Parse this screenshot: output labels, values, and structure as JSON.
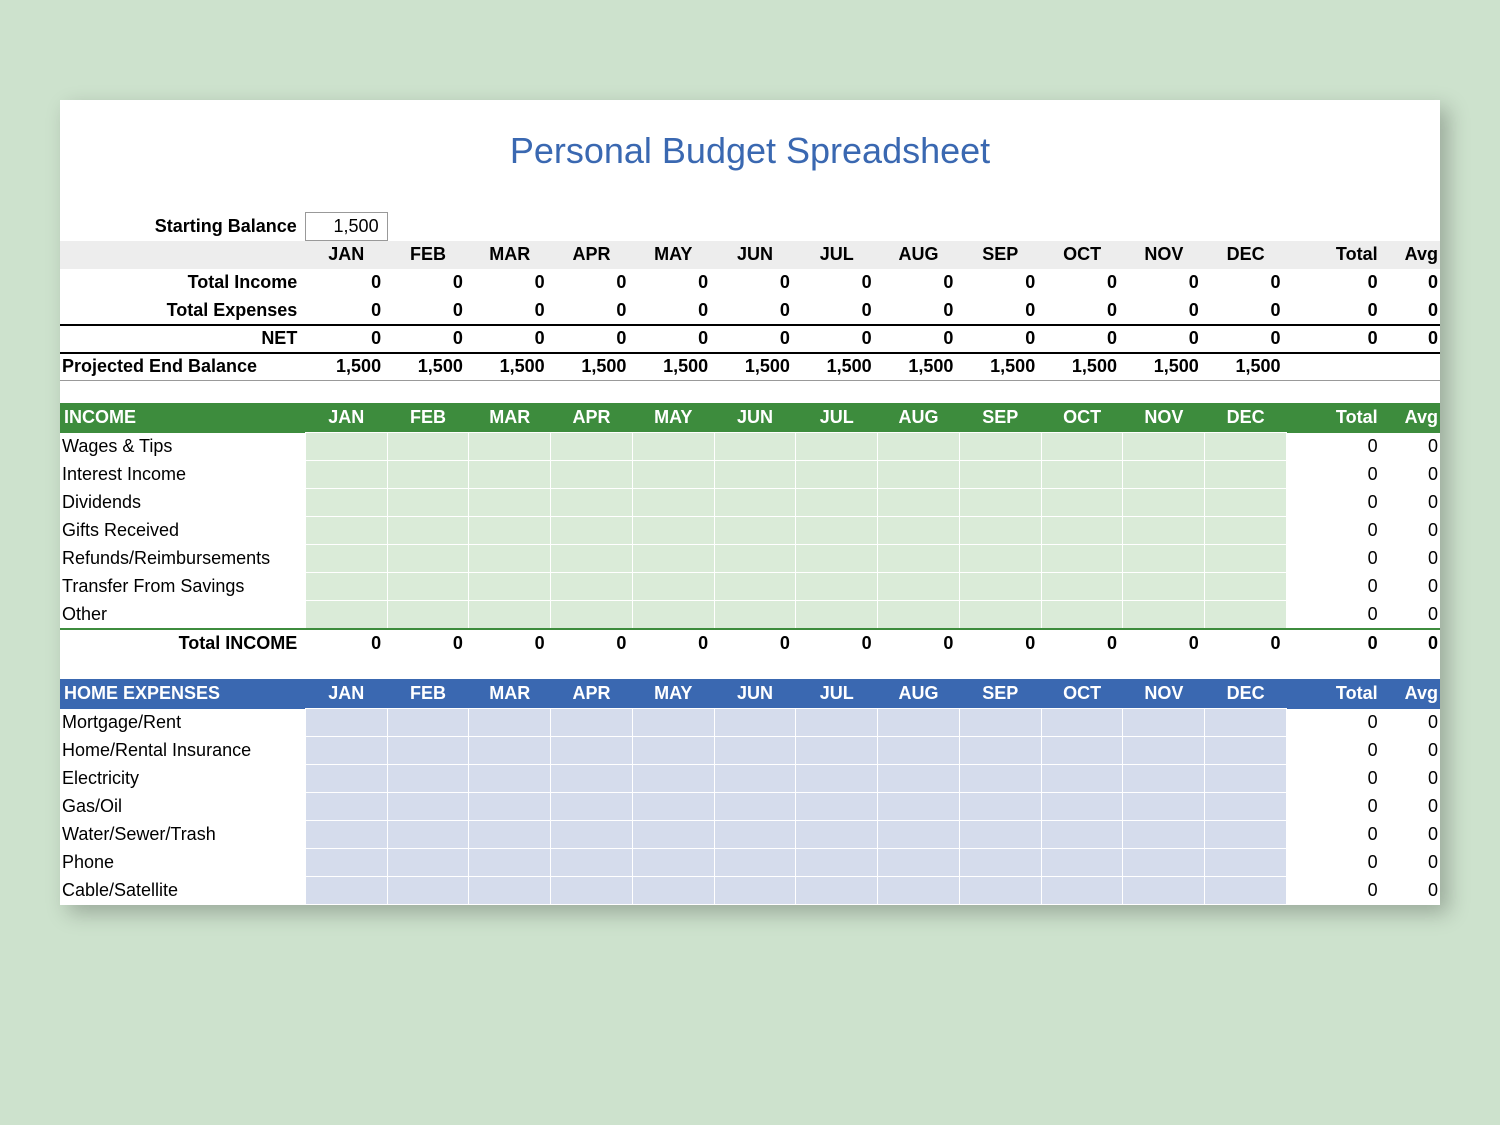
{
  "title": "Personal Budget Spreadsheet",
  "starting_balance_label": "Starting Balance",
  "starting_balance_value": "1,500",
  "months": [
    "JAN",
    "FEB",
    "MAR",
    "APR",
    "MAY",
    "JUN",
    "JUL",
    "AUG",
    "SEP",
    "OCT",
    "NOV",
    "DEC"
  ],
  "total_label": "Total",
  "avg_label": "Avg",
  "summary": {
    "total_income_label": "Total Income",
    "total_income": [
      "0",
      "0",
      "0",
      "0",
      "0",
      "0",
      "0",
      "0",
      "0",
      "0",
      "0",
      "0",
      "0",
      "0"
    ],
    "total_expenses_label": "Total Expenses",
    "total_expenses": [
      "0",
      "0",
      "0",
      "0",
      "0",
      "0",
      "0",
      "0",
      "0",
      "0",
      "0",
      "0",
      "0",
      "0"
    ],
    "net_label": "NET",
    "net": [
      "0",
      "0",
      "0",
      "0",
      "0",
      "0",
      "0",
      "0",
      "0",
      "0",
      "0",
      "0",
      "0",
      "0"
    ],
    "projected_label": "Projected End Balance",
    "projected": [
      "1,500",
      "1,500",
      "1,500",
      "1,500",
      "1,500",
      "1,500",
      "1,500",
      "1,500",
      "1,500",
      "1,500",
      "1,500",
      "1,500",
      "",
      ""
    ]
  },
  "income": {
    "header": "INCOME",
    "items": [
      {
        "label": "Wages & Tips",
        "total": "0",
        "avg": "0"
      },
      {
        "label": "Interest Income",
        "total": "0",
        "avg": "0"
      },
      {
        "label": "Dividends",
        "total": "0",
        "avg": "0"
      },
      {
        "label": "Gifts Received",
        "total": "0",
        "avg": "0"
      },
      {
        "label": "Refunds/Reimbursements",
        "total": "0",
        "avg": "0"
      },
      {
        "label": "Transfer From Savings",
        "total": "0",
        "avg": "0"
      },
      {
        "label": "Other",
        "total": "0",
        "avg": "0"
      }
    ],
    "total_label": "Total INCOME",
    "total_row": [
      "0",
      "0",
      "0",
      "0",
      "0",
      "0",
      "0",
      "0",
      "0",
      "0",
      "0",
      "0",
      "0",
      "0"
    ]
  },
  "home_expenses": {
    "header": "HOME EXPENSES",
    "items": [
      {
        "label": "Mortgage/Rent",
        "total": "0",
        "avg": "0"
      },
      {
        "label": "Home/Rental Insurance",
        "total": "0",
        "avg": "0"
      },
      {
        "label": "Electricity",
        "total": "0",
        "avg": "0"
      },
      {
        "label": "Gas/Oil",
        "total": "0",
        "avg": "0"
      },
      {
        "label": "Water/Sewer/Trash",
        "total": "0",
        "avg": "0"
      },
      {
        "label": "Phone",
        "total": "0",
        "avg": "0"
      },
      {
        "label": "Cable/Satellite",
        "total": "0",
        "avg": "0"
      }
    ]
  },
  "colors": {
    "page_bg": "#cde2cd",
    "sheet_bg": "#ffffff",
    "title_color": "#3a68b1",
    "month_header_bg": "#ededed",
    "income_header_bg": "#3d8c3d",
    "expense_header_bg": "#3a68b1",
    "income_cell_bg": "#daebd8",
    "expense_cell_bg": "#d5dcec"
  }
}
